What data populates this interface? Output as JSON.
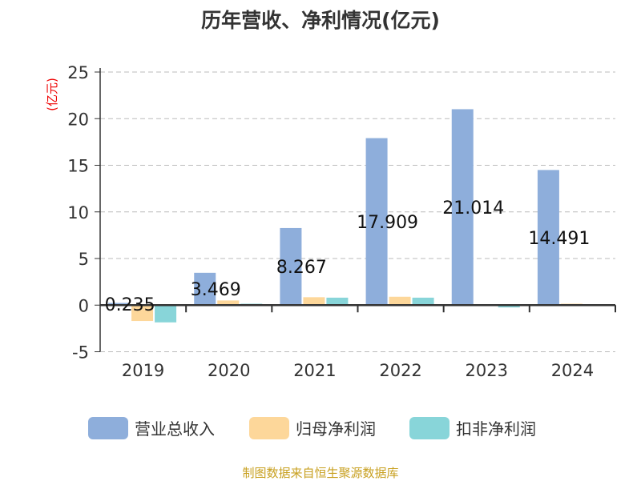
{
  "chart_data": {
    "type": "bar",
    "title": "历年营收、净利情况(亿元)",
    "ylabel": "(亿元)",
    "ylim": [
      -5,
      25
    ],
    "yticks": [
      -5,
      0,
      5,
      10,
      15,
      20,
      25
    ],
    "grid": true,
    "legend_position": "bottom",
    "categories": [
      "2019",
      "2020",
      "2021",
      "2022",
      "2023",
      "2024"
    ],
    "series": [
      {
        "name": "营业总收入",
        "color": "#8eaedb",
        "values": [
          0.235,
          3.469,
          8.267,
          17.909,
          21.014,
          14.491
        ],
        "labels": [
          "0.235",
          "3.469",
          "8.267",
          "17.909",
          "21.014",
          "14.491"
        ]
      },
      {
        "name": "归母净利润",
        "color": "#fdd79a",
        "values": [
          -1.7,
          0.5,
          0.85,
          0.9,
          0.05,
          0.15
        ]
      },
      {
        "name": "扣非净利润",
        "color": "#88d5d9",
        "values": [
          -1.85,
          0.15,
          0.8,
          0.8,
          -0.25,
          0.05
        ]
      }
    ]
  },
  "source": "制图数据来自恒生聚源数据库"
}
